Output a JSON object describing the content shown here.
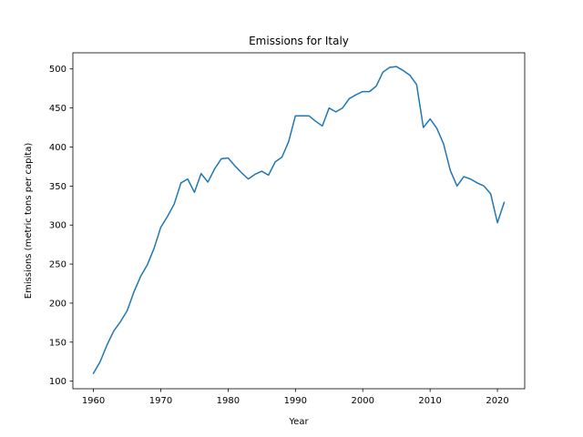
{
  "chart_data": {
    "type": "line",
    "title": "Emissions for Italy",
    "xlabel": "Year",
    "ylabel": "Emissions (metric tons per capita)",
    "xlim": [
      1956.95,
      2024.05
    ],
    "ylim": [
      90.3,
      520.7
    ],
    "xticks": [
      1960,
      1970,
      1980,
      1990,
      2000,
      2010,
      2020
    ],
    "yticks": [
      100,
      150,
      200,
      250,
      300,
      350,
      400,
      450,
      500
    ],
    "grid": false,
    "legend": "none",
    "series": [
      {
        "color": "#1f77b4",
        "x": [
          1960,
          1961,
          1962,
          1963,
          1964,
          1965,
          1966,
          1967,
          1968,
          1969,
          1970,
          1971,
          1972,
          1973,
          1974,
          1975,
          1976,
          1977,
          1978,
          1979,
          1980,
          1981,
          1982,
          1983,
          1984,
          1985,
          1986,
          1987,
          1988,
          1989,
          1990,
          1991,
          1992,
          1993,
          1994,
          1995,
          1996,
          1997,
          1998,
          1999,
          2000,
          2001,
          2002,
          2003,
          2004,
          2005,
          2006,
          2007,
          2008,
          2009,
          2010,
          2011,
          2012,
          2013,
          2014,
          2015,
          2016,
          2017,
          2018,
          2019,
          2020,
          2021
        ],
        "y": [
          110,
          125,
          146,
          164,
          176,
          190,
          214,
          234,
          249,
          270,
          297,
          311,
          327,
          354,
          359,
          342,
          366,
          355,
          372,
          385,
          386,
          376,
          367,
          359,
          365,
          369,
          364,
          381,
          387,
          407,
          440,
          440,
          440,
          433,
          427,
          450,
          445,
          450,
          462,
          467,
          471,
          471,
          478,
          496,
          502,
          503,
          498,
          492,
          480,
          425,
          436,
          424,
          404,
          370,
          350,
          362,
          359,
          354,
          350,
          340,
          303,
          329
        ]
      }
    ]
  }
}
